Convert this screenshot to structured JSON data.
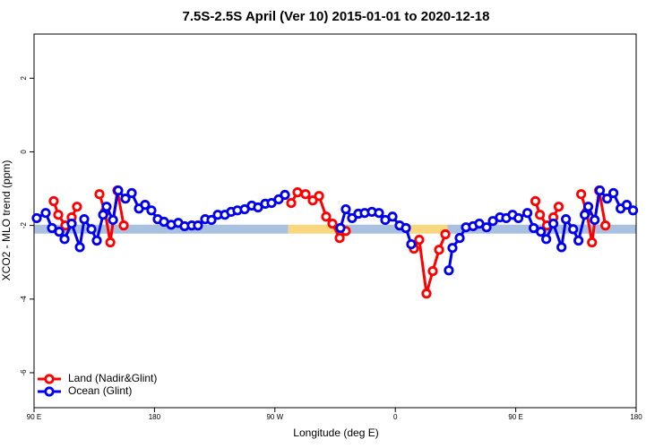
{
  "chart_data": {
    "type": "line",
    "title": "7.5S-2.5S April (Ver 10)   2015-01-01 to 2020-12-18",
    "x_label": "Longitude (deg E)",
    "y_label": "XCO2 - MLO trend (ppm)",
    "xlim": [
      90,
      540
    ],
    "ylim": [
      -6.95,
      3.2
    ],
    "xticks": [
      {
        "value": 90,
        "label": "90 E"
      },
      180,
      {
        "value": 270,
        "label": "90 W"
      },
      {
        "value": 360,
        "label": "0"
      },
      {
        "value": 450,
        "label": "90 E"
      },
      {
        "value": 540,
        "label": "180"
      }
    ],
    "yticks": [
      -6,
      -4,
      -2,
      0,
      2
    ],
    "reference_level": -2.1,
    "band_segments": [
      {
        "from": 90,
        "to": 280,
        "color": "#a9c0df"
      },
      {
        "from": 280,
        "to": 318,
        "color": "#f8d77f"
      },
      {
        "from": 318,
        "to": 371,
        "color": "#a9c0df"
      },
      {
        "from": 371,
        "to": 399,
        "color": "#f8d77f"
      },
      {
        "from": 399,
        "to": 540,
        "color": "#a9c0df"
      }
    ],
    "legend": "bottom-left",
    "series": [
      {
        "name": "Land (Nadir&Glint)",
        "color": "#ff0000",
        "x": [
          104.7,
          108.1,
          113.4,
          118.1,
          122.1,
          null,
          138.9,
          143,
          147,
          152.3,
          157,
          null,
          282.2,
          286.9,
          292.9,
          298.3,
          303,
          308.3,
          313,
          318.4,
          323,
          null,
          373.9,
          377.9,
          383.3,
          388,
          392.7,
          397.4,
          null,
          464.7,
          468.1,
          473.4,
          478.1,
          482.1,
          null,
          498.9,
          503,
          507,
          512.3,
          517
        ],
        "values": [
          -1.34,
          -1.71,
          -2.0,
          -1.78,
          -1.49,
          null,
          -1.15,
          -1.63,
          -2.46,
          -1.05,
          -2.0,
          null,
          -1.39,
          -1.1,
          -1.15,
          -1.32,
          -1.2,
          -1.76,
          -1.95,
          -2.34,
          -2.15,
          null,
          -2.63,
          -2.39,
          -3.85,
          -3.24,
          -2.66,
          -2.24,
          null,
          -1.34,
          -1.71,
          -2.0,
          -1.78,
          -1.49,
          null,
          -1.15,
          -1.63,
          -2.46,
          -1.05,
          -2.0
        ]
      },
      {
        "name": "Ocean (Glint)",
        "color": "#0000ee",
        "x": [
          92,
          98.7,
          103.4,
          108.8,
          112.8,
          118.1,
          124.2,
          127.5,
          132.9,
          136.9,
          141.6,
          144.2,
          149,
          152.9,
          158.3,
          163,
          168.4,
          173,
          177.7,
          182.4,
          187.1,
          192.5,
          197.8,
          202.5,
          207.9,
          212.5,
          217.9,
          222.6,
          227.3,
          232.6,
          237.3,
          242,
          247.4,
          252.7,
          257.4,
          262.8,
          267.5,
          272.8,
          277.5,
          null,
          319,
          323,
          327.7,
          332.4,
          337.1,
          342.5,
          347.8,
          352.5,
          357.9,
          363.2,
          367.9,
          371.9,
          null,
          400,
          402.7,
          408.1,
          412.8,
          418.1,
          422.8,
          428.2,
          432.9,
          438.2,
          442.9,
          447.6,
          452,
          458.7,
          463.4,
          468.8,
          472.8,
          478.1,
          484.2,
          487.5,
          492.9,
          496.9,
          501.6,
          504.2,
          509,
          512.9,
          518.3,
          523,
          528.4,
          533,
          537.7
        ],
        "values": [
          -1.8,
          -1.66,
          -2.07,
          -2.17,
          -2.37,
          -1.95,
          -2.59,
          -1.83,
          -2.1,
          -2.41,
          -1.71,
          -1.49,
          -1.85,
          -1.05,
          -1.27,
          -1.12,
          -1.54,
          -1.44,
          -1.59,
          -1.83,
          -1.9,
          -1.98,
          -1.93,
          -2.02,
          -2.0,
          -2.0,
          -1.83,
          -1.85,
          -1.71,
          -1.71,
          -1.63,
          -1.59,
          -1.56,
          -1.46,
          -1.51,
          -1.41,
          -1.39,
          -1.29,
          -1.17,
          null,
          -2.07,
          -1.56,
          -1.8,
          -1.68,
          -1.66,
          -1.63,
          -1.66,
          -1.85,
          -1.76,
          -2.0,
          -2.07,
          -2.51,
          null,
          -3.22,
          -2.61,
          -2.34,
          -2.05,
          -2.02,
          -1.95,
          -2.05,
          -1.88,
          -1.78,
          -1.8,
          -1.71,
          -1.8,
          -1.66,
          -2.07,
          -2.17,
          -2.37,
          -1.95,
          -2.59,
          -1.83,
          -2.1,
          -2.41,
          -1.71,
          -1.49,
          -1.85,
          -1.05,
          -1.27,
          -1.12,
          -1.54,
          -1.44,
          -1.59
        ]
      }
    ]
  }
}
